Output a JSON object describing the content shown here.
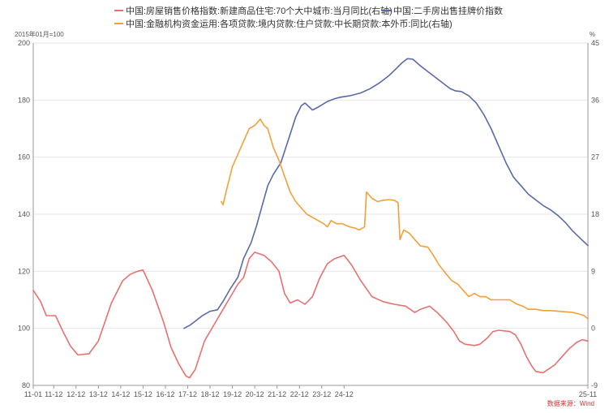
{
  "chart_data": {
    "type": "line",
    "left_axis": {
      "unit": "2015年01月=100",
      "ylim": [
        80,
        200
      ],
      "ticks": [
        80,
        100,
        120,
        140,
        160,
        180,
        200
      ]
    },
    "right_axis": {
      "unit": "%",
      "ylim": [
        -9,
        45
      ],
      "ticks": [
        -9,
        0,
        9,
        18,
        27,
        36,
        45
      ]
    },
    "x_ticks": [
      "11-01",
      "11-12",
      "12-12",
      "13-12",
      "14-12",
      "15-12",
      "16-12",
      "17-12",
      "18-12",
      "19-12",
      "20-12",
      "21-12",
      "22-12",
      "23-12",
      "24-12",
      "25-11"
    ],
    "grid": "horizontal",
    "legend": "top",
    "source": "数据来源：Wind",
    "colors": {
      "new_home": "#e8706f",
      "second_hand": "#5a6aa8",
      "loan": "#f4a03a",
      "grid": "#e6e6e6",
      "axis": "#999999"
    },
    "series": [
      {
        "name": "中国:房屋销售价格指数:新建商品住宅:70个大中城市:当月同比(右轴)",
        "axis": "right",
        "color": "#e8706f",
        "points": [
          [
            0,
            6.0
          ],
          [
            4,
            4.2
          ],
          [
            7,
            2.0
          ],
          [
            12,
            2.0
          ],
          [
            16,
            -0.5
          ],
          [
            20,
            -2.8
          ],
          [
            24,
            -4.2
          ],
          [
            30,
            -4.0
          ],
          [
            35,
            -2.0
          ],
          [
            42,
            4.0
          ],
          [
            48,
            7.5
          ],
          [
            52,
            8.5
          ],
          [
            56,
            9.0
          ],
          [
            59,
            9.2
          ],
          [
            64,
            6.0
          ],
          [
            70,
            1.0
          ],
          [
            74,
            -3.0
          ],
          [
            78,
            -5.5
          ],
          [
            82,
            -7.5
          ],
          [
            84,
            -7.8
          ],
          [
            87,
            -6.5
          ],
          [
            92,
            -2.0
          ],
          [
            98,
            1.0
          ],
          [
            102,
            3.0
          ],
          [
            106,
            5.0
          ],
          [
            110,
            7.0
          ],
          [
            113,
            8.0
          ],
          [
            116,
            11.0
          ],
          [
            119,
            12.0
          ],
          [
            124,
            11.5
          ],
          [
            128,
            10.5
          ],
          [
            132,
            9.0
          ],
          [
            135,
            5.5
          ],
          [
            138,
            4.0
          ],
          [
            142,
            4.5
          ],
          [
            146,
            3.8
          ],
          [
            150,
            5.0
          ],
          [
            154,
            8.0
          ],
          [
            158,
            10.2
          ],
          [
            162,
            11.0
          ],
          [
            167,
            11.5
          ],
          [
            171,
            10.0
          ],
          [
            176,
            7.5
          ],
          [
            182,
            5.0
          ],
          [
            188,
            4.2
          ],
          [
            194,
            3.8
          ],
          [
            200,
            3.5
          ],
          [
            205,
            2.5
          ],
          [
            208,
            3.0
          ],
          [
            213,
            3.5
          ],
          [
            217,
            2.5
          ],
          [
            222,
            1.0
          ],
          [
            226,
            -0.5
          ],
          [
            229,
            -2.0
          ],
          [
            232,
            -2.5
          ],
          [
            237,
            -2.7
          ],
          [
            240,
            -2.5
          ],
          [
            244,
            -1.5
          ],
          [
            247,
            -0.5
          ],
          [
            250,
            -0.3
          ],
          [
            256,
            -0.5
          ],
          [
            259,
            -1.0
          ],
          [
            262,
            -2.5
          ],
          [
            265,
            -4.5
          ],
          [
            268,
            -6.0
          ],
          [
            270,
            -6.8
          ],
          [
            274,
            -7.0
          ],
          [
            276,
            -6.6
          ],
          [
            280,
            -5.8
          ],
          [
            284,
            -4.5
          ],
          [
            288,
            -3.2
          ],
          [
            292,
            -2.2
          ],
          [
            295,
            -1.8
          ],
          [
            298,
            -2.0
          ]
        ]
      },
      {
        "name": "中国:二手房出售挂牌价指数",
        "axis": "left",
        "color": "#5a6aa8",
        "points": [
          [
            81,
            100.0
          ],
          [
            84,
            101.0
          ],
          [
            87,
            102.5
          ],
          [
            91,
            104.5
          ],
          [
            95,
            106.0
          ],
          [
            99,
            106.5
          ],
          [
            102,
            109.5
          ],
          [
            106,
            114.0
          ],
          [
            110,
            118.0
          ],
          [
            113,
            124.5
          ],
          [
            117,
            130.0
          ],
          [
            120,
            136.0
          ],
          [
            123,
            143.0
          ],
          [
            126,
            150.0
          ],
          [
            129,
            154.0
          ],
          [
            133,
            158.0
          ],
          [
            137,
            166.0
          ],
          [
            141,
            174.0
          ],
          [
            144,
            178.0
          ],
          [
            146,
            179.0
          ],
          [
            150,
            176.5
          ],
          [
            153,
            177.5
          ],
          [
            158,
            179.5
          ],
          [
            162,
            180.5
          ],
          [
            165,
            181.0
          ],
          [
            170,
            181.5
          ],
          [
            176,
            182.5
          ],
          [
            181,
            184.0
          ],
          [
            186,
            186.0
          ],
          [
            191,
            188.5
          ],
          [
            195,
            191.0
          ],
          [
            198,
            193.0
          ],
          [
            201,
            194.5
          ],
          [
            204,
            194.3
          ],
          [
            208,
            192.0
          ],
          [
            212,
            190.0
          ],
          [
            216,
            188.0
          ],
          [
            220,
            186.0
          ],
          [
            224,
            184.0
          ],
          [
            227,
            183.2
          ],
          [
            230,
            183.0
          ],
          [
            234,
            181.5
          ],
          [
            238,
            179.0
          ],
          [
            242,
            175.0
          ],
          [
            246,
            170.0
          ],
          [
            250,
            164.0
          ],
          [
            254,
            158.0
          ],
          [
            258,
            153.0
          ],
          [
            262,
            150.0
          ],
          [
            266,
            147.0
          ],
          [
            270,
            145.0
          ],
          [
            274,
            143.0
          ],
          [
            278,
            141.5
          ],
          [
            282,
            139.5
          ],
          [
            286,
            137.0
          ],
          [
            290,
            134.0
          ],
          [
            294,
            131.5
          ],
          [
            298,
            129.0
          ]
        ]
      },
      {
        "name": "中国:金融机构资金运用:各项贷款:境内贷款:住户贷款:中长期贷款:本外币:同比(右轴)",
        "axis": "right",
        "color": "#f4a03a",
        "points": [
          [
            101,
            20.0
          ],
          [
            102,
            19.5
          ],
          [
            104,
            22.0
          ],
          [
            107,
            25.5
          ],
          [
            110,
            27.5
          ],
          [
            113,
            29.5
          ],
          [
            116,
            31.5
          ],
          [
            119,
            32.0
          ],
          [
            122,
            33.0
          ],
          [
            124,
            32.0
          ],
          [
            126,
            31.5
          ],
          [
            129,
            28.5
          ],
          [
            132,
            26.5
          ],
          [
            135,
            24.0
          ],
          [
            138,
            21.5
          ],
          [
            141,
            20.0
          ],
          [
            144,
            19.0
          ],
          [
            147,
            18.0
          ],
          [
            150,
            17.5
          ],
          [
            153,
            17.0
          ],
          [
            156,
            16.5
          ],
          [
            158,
            16.0
          ],
          [
            160,
            17.0
          ],
          [
            163,
            16.5
          ],
          [
            166,
            16.5
          ],
          [
            170,
            16.0
          ],
          [
            173,
            15.8
          ],
          [
            175,
            15.5
          ],
          [
            178,
            16.0
          ],
          [
            179,
            21.5
          ],
          [
            182,
            20.5
          ],
          [
            185,
            20.0
          ],
          [
            188,
            20.2
          ],
          [
            191,
            20.3
          ],
          [
            194,
            20.2
          ],
          [
            196,
            19.8
          ],
          [
            197,
            14.0
          ],
          [
            199,
            15.5
          ],
          [
            202,
            15.0
          ],
          [
            205,
            14.0
          ],
          [
            208,
            13.0
          ],
          [
            212,
            12.8
          ],
          [
            215,
            11.5
          ],
          [
            218,
            10.0
          ],
          [
            222,
            8.5
          ],
          [
            225,
            7.5
          ],
          [
            228,
            7.0
          ],
          [
            231,
            6.0
          ],
          [
            234,
            5.0
          ],
          [
            237,
            5.5
          ],
          [
            240,
            5.0
          ],
          [
            243,
            5.0
          ],
          [
            246,
            4.5
          ],
          [
            250,
            4.5
          ],
          [
            253,
            4.5
          ],
          [
            256,
            4.5
          ],
          [
            260,
            3.8
          ],
          [
            263,
            3.5
          ],
          [
            266,
            3.0
          ],
          [
            270,
            3.0
          ],
          [
            274,
            2.8
          ],
          [
            278,
            2.8
          ],
          [
            282,
            2.7
          ],
          [
            286,
            2.6
          ],
          [
            290,
            2.5
          ],
          [
            294,
            2.2
          ],
          [
            296,
            2.0
          ],
          [
            298,
            1.5
          ]
        ]
      }
    ]
  }
}
